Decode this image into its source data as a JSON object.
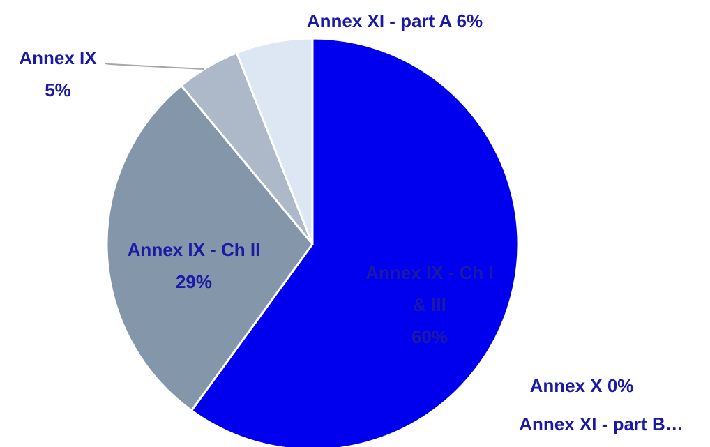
{
  "chart_data": {
    "type": "pie",
    "title": "",
    "slices": [
      {
        "name": "Annex IX - Ch I & III",
        "value": 60,
        "color": "#0000ee",
        "label_lines": [
          "Annex IX - Ch I",
          "& III",
          "60%"
        ]
      },
      {
        "name": "Annex X",
        "value": 0,
        "color": "#1f2f7a",
        "label_lines": [
          "Annex X 0%"
        ]
      },
      {
        "name": "Annex XI - part B",
        "value": 0,
        "color": "#3d4f8a",
        "label_lines": [
          "Annex XI - part B…"
        ]
      },
      {
        "name": "Annex IX - Ch II",
        "value": 29,
        "color": "#8496aa",
        "label_lines": [
          "Annex IX - Ch II",
          "29%"
        ]
      },
      {
        "name": "Annex IX",
        "value": 5,
        "color": "#adb9c9",
        "label_lines": [
          "Annex IX",
          "5%"
        ]
      },
      {
        "name": "Annex XI - part A",
        "value": 6,
        "color": "#dde7f3",
        "label_lines": [
          "Annex XI - part A 6%"
        ]
      }
    ],
    "label_color": "#1a1aa6",
    "leader_line_color": "#a6a6a6",
    "legend": "none"
  }
}
